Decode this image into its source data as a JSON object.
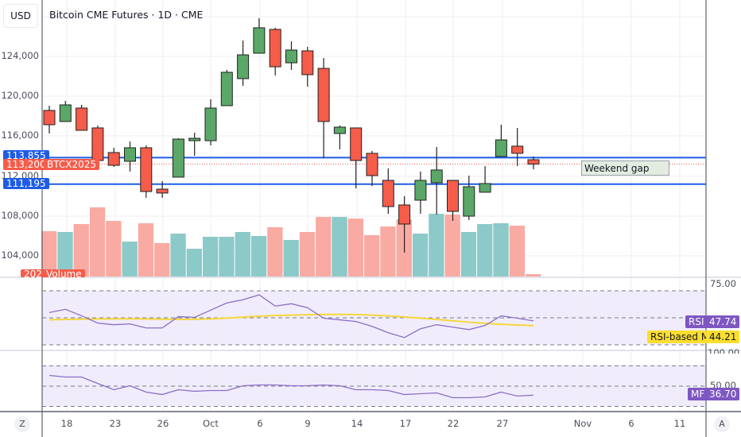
{
  "header": {
    "currency": "USD",
    "title": "Bitcoin CME Futures · 1D · CME"
  },
  "colors": {
    "up": "#5aa768",
    "down": "#f55c4a",
    "vol_up": "#8cc9c9",
    "vol_down": "#f9aaa2",
    "hline": "#1e5ce6",
    "rsi": "#8a6ec8",
    "rsi_ma": "#f5d73a",
    "mf": "#8a6ec8",
    "band": "#f1ecfb"
  },
  "price_axis": {
    "ticks": [
      "124,000",
      "120,000",
      "116,000",
      "112,000",
      "108,000",
      "104,000"
    ],
    "tick_values": [
      124000,
      120000,
      116000,
      112000,
      108000,
      104000
    ]
  },
  "tags": {
    "hline_upper": "113,855",
    "hline_upper_value": 113855,
    "last_price": "113,200",
    "symbol": "BTCX2025",
    "hline_lower": "111,195",
    "hline_lower_value": 111195,
    "volume_value": "202",
    "volume_label": "Volume"
  },
  "annotation": {
    "text": "Weekend gap"
  },
  "chart_data": [
    {
      "type": "candlestick",
      "title": "Bitcoin CME Futures · 1D · CME",
      "ylabel": "USD",
      "ylim": [
        101000,
        129500
      ],
      "x_ticks": [
        "18",
        "23",
        "26",
        "Oct",
        "6",
        "9",
        "14",
        "17",
        "22",
        "27",
        "Nov",
        "6",
        "11"
      ],
      "ohlc": [
        [
          118580,
          119060,
          116270,
          117150
        ],
        [
          117470,
          119540,
          117470,
          119140
        ],
        [
          118820,
          119140,
          116590,
          116590
        ],
        [
          116830,
          117070,
          113320,
          113560
        ],
        [
          114360,
          114840,
          112920,
          113080
        ],
        [
          113480,
          115470,
          112450,
          114840
        ],
        [
          114840,
          115080,
          109820,
          110450
        ],
        [
          110690,
          111490,
          109820,
          110300
        ],
        [
          111890,
          115790,
          111890,
          115710
        ],
        [
          115550,
          116350,
          114040,
          115790
        ],
        [
          115550,
          119700,
          115080,
          118820
        ],
        [
          119060,
          122650,
          119060,
          122410
        ],
        [
          121770,
          125590,
          121050,
          124160
        ],
        [
          124320,
          127830,
          124320,
          126870
        ],
        [
          126710,
          126870,
          122090,
          122960
        ],
        [
          123360,
          125510,
          122650,
          124640
        ],
        [
          124560,
          124960,
          120970,
          122170
        ],
        [
          122800,
          123840,
          113800,
          117470
        ],
        [
          116270,
          117070,
          114680,
          116910
        ],
        [
          116830,
          116830,
          110770,
          113560
        ],
        [
          114280,
          114520,
          111010,
          112050
        ],
        [
          111570,
          112770,
          108220,
          108940
        ],
        [
          109100,
          109980,
          104320,
          107190
        ],
        [
          109580,
          112450,
          108220,
          111570
        ],
        [
          111330,
          114920,
          108140,
          112610
        ],
        [
          111570,
          111570,
          107510,
          108460
        ],
        [
          107980,
          112050,
          107590,
          110930
        ],
        [
          110380,
          113000,
          110380,
          111250
        ],
        [
          113960,
          117150,
          113960,
          115630
        ],
        [
          115000,
          116830,
          113000,
          114280
        ],
        [
          113640,
          113960,
          112690,
          113200
        ]
      ],
      "horizontal_lines": [
        113855,
        111195
      ]
    },
    {
      "type": "bar",
      "name": "Volume",
      "values": [
        3880,
        3810,
        4490,
        5920,
        4760,
        2990,
        4560,
        2860,
        3670,
        2380,
        3400,
        3400,
        3810,
        3470,
        4220,
        3130,
        3810,
        5100,
        5100,
        4960,
        3540,
        4280,
        4900,
        3670,
        5370,
        5300,
        3810,
        4490,
        4560,
        4350,
        202
      ]
    },
    {
      "type": "line",
      "ylim": [
        25,
        77
      ],
      "y_ticks": [
        "75.00"
      ],
      "bands": [
        30,
        50,
        70
      ],
      "series": [
        {
          "name": "RSI",
          "last": "47.74",
          "values": [
            53.9,
            56.3,
            51.5,
            46.1,
            44.9,
            45.5,
            42.5,
            42.5,
            50.9,
            50.3,
            55.7,
            61.0,
            63.4,
            67.0,
            58.7,
            60.4,
            57.5,
            49.7,
            48.5,
            47.3,
            43.7,
            39.0,
            35.4,
            41.9,
            44.9,
            43.1,
            41.3,
            44.3,
            51.5,
            49.7,
            47.74
          ]
        },
        {
          "name": "RSI-based MA",
          "last": "44.21",
          "values": [
            48.5,
            48.8,
            49.0,
            49.2,
            49.3,
            49.3,
            49.2,
            49.0,
            48.9,
            48.9,
            49.2,
            49.8,
            50.5,
            51.2,
            51.7,
            52.0,
            52.3,
            52.5,
            52.5,
            52.4,
            52.0,
            51.4,
            50.6,
            49.8,
            48.8,
            47.8,
            46.8,
            45.9,
            45.2,
            44.7,
            44.21
          ]
        }
      ]
    },
    {
      "type": "line",
      "ylim": [
        10,
        103
      ],
      "y_ticks": [
        "100.00",
        "50.00"
      ],
      "bands": [
        20,
        50,
        80
      ],
      "series": [
        {
          "name": "MF",
          "last": "36.70",
          "values": [
            65.9,
            63.5,
            63.5,
            54.0,
            44.7,
            50.6,
            41.2,
            37.6,
            44.7,
            42.4,
            43.5,
            43.5,
            50.6,
            51.8,
            51.8,
            50.6,
            50.6,
            51.8,
            50.6,
            44.7,
            44.7,
            43.5,
            37.6,
            38.8,
            40.0,
            32.9,
            32.9,
            34.1,
            41.2,
            35.3,
            36.7
          ]
        }
      ]
    }
  ],
  "footer": {
    "left_button": "Z",
    "right_button": "A"
  }
}
